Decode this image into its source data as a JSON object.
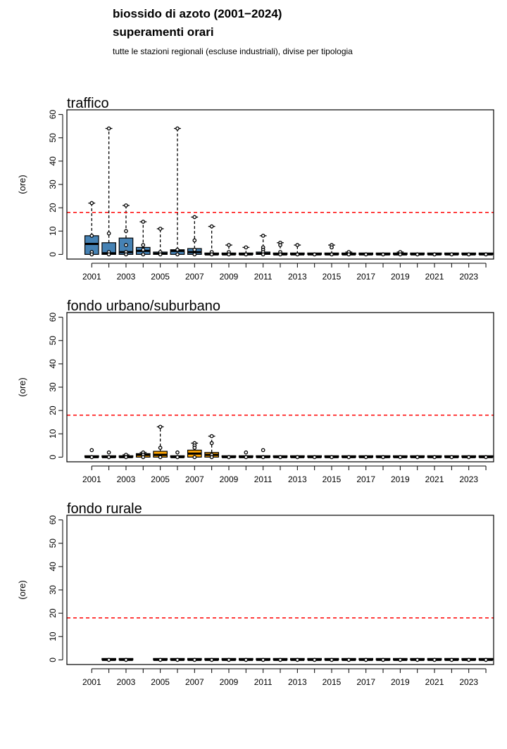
{
  "header": {
    "title_line1": "biossido di azoto (2001−2024)",
    "title_line2": "superamenti orari",
    "subtitle": "tutte le stazioni regionali (escluse industriali), divise per tipologia"
  },
  "colors": {
    "traffico": "#4682b4",
    "fondo_urbano": "#ffa500",
    "fondo_rurale": "#808080",
    "threshold": "#ff0000"
  },
  "chart_data": [
    {
      "type": "boxplot",
      "title": "traffico",
      "ylabel": "(ore)",
      "ylim": [
        -2,
        62
      ],
      "yticks": [
        0,
        10,
        20,
        30,
        40,
        50,
        60
      ],
      "years": [
        2001,
        2002,
        2003,
        2004,
        2005,
        2006,
        2007,
        2008,
        2009,
        2010,
        2011,
        2012,
        2013,
        2014,
        2015,
        2016,
        2017,
        2018,
        2019,
        2020,
        2021,
        2022,
        2023,
        2024
      ],
      "xtick_labels": [
        2001,
        2003,
        2005,
        2007,
        2009,
        2011,
        2013,
        2015,
        2017,
        2019,
        2021,
        2023
      ],
      "threshold": 18,
      "boxes": [
        {
          "year": 2001,
          "q1": 0,
          "median": 4.5,
          "q3": 8,
          "wmin": 0,
          "wmax": 22,
          "outliers": [
            22,
            8,
            1,
            0
          ]
        },
        {
          "year": 2002,
          "q1": 0,
          "median": 0.5,
          "q3": 5,
          "wmin": 0,
          "wmax": 54,
          "outliers": [
            54,
            9,
            1,
            0
          ]
        },
        {
          "year": 2003,
          "q1": 0,
          "median": 1,
          "q3": 7,
          "wmin": 0,
          "wmax": 21,
          "outliers": [
            21,
            10,
            4,
            1,
            0
          ]
        },
        {
          "year": 2004,
          "q1": 0,
          "median": 1.5,
          "q3": 3,
          "wmin": 0,
          "wmax": 14,
          "outliers": [
            14,
            4,
            2,
            0
          ]
        },
        {
          "year": 2005,
          "q1": 0,
          "median": 0.3,
          "q3": 1,
          "wmin": 0,
          "wmax": 11,
          "outliers": [
            11,
            1,
            0
          ]
        },
        {
          "year": 2006,
          "q1": 0,
          "median": 1.5,
          "q3": 2,
          "wmin": 0,
          "wmax": 54,
          "outliers": [
            54,
            2,
            0
          ]
        },
        {
          "year": 2007,
          "q1": 0,
          "median": 1,
          "q3": 2.5,
          "wmin": 0,
          "wmax": 16,
          "outliers": [
            16,
            6,
            2,
            0
          ]
        },
        {
          "year": 2008,
          "q1": 0,
          "median": 0,
          "q3": 0.5,
          "wmin": 0,
          "wmax": 12,
          "outliers": [
            12,
            1,
            0
          ]
        },
        {
          "year": 2009,
          "q1": 0,
          "median": 0,
          "q3": 0.3,
          "wmin": 0,
          "wmax": 4,
          "outliers": [
            4,
            1,
            0
          ]
        },
        {
          "year": 2010,
          "q1": 0,
          "median": 0,
          "q3": 0.3,
          "wmin": 0,
          "wmax": 3,
          "outliers": [
            3,
            0
          ]
        },
        {
          "year": 2011,
          "q1": 0,
          "median": 0.3,
          "q3": 1,
          "wmin": 0,
          "wmax": 8,
          "outliers": [
            8,
            3,
            2,
            1,
            0
          ]
        },
        {
          "year": 2012,
          "q1": 0,
          "median": 0,
          "q3": 0.5,
          "wmin": 0,
          "wmax": 5,
          "outliers": [
            5,
            4,
            1,
            0
          ]
        },
        {
          "year": 2013,
          "q1": 0,
          "median": 0,
          "q3": 0.2,
          "wmin": 0,
          "wmax": 4,
          "outliers": [
            4,
            0
          ]
        },
        {
          "year": 2014,
          "q1": 0,
          "median": 0,
          "q3": 0.2,
          "wmin": 0,
          "wmax": 0.2,
          "outliers": [
            0
          ]
        },
        {
          "year": 2015,
          "q1": 0,
          "median": 0,
          "q3": 0.2,
          "wmin": 0,
          "wmax": 4,
          "outliers": [
            4,
            3,
            0
          ]
        },
        {
          "year": 2016,
          "q1": 0,
          "median": 0,
          "q3": 0.2,
          "wmin": 0,
          "wmax": 1,
          "outliers": [
            1,
            0
          ]
        },
        {
          "year": 2017,
          "q1": 0,
          "median": 0,
          "q3": 0.2,
          "wmin": 0,
          "wmax": 0.2,
          "outliers": [
            0
          ]
        },
        {
          "year": 2018,
          "q1": 0,
          "median": 0,
          "q3": 0.2,
          "wmin": 0,
          "wmax": 0.2,
          "outliers": [
            0
          ]
        },
        {
          "year": 2019,
          "q1": 0,
          "median": 0,
          "q3": 0.2,
          "wmin": 0,
          "wmax": 1,
          "outliers": [
            1,
            0
          ]
        },
        {
          "year": 2020,
          "q1": 0,
          "median": 0,
          "q3": 0.2,
          "wmin": 0,
          "wmax": 0.2,
          "outliers": [
            0
          ]
        },
        {
          "year": 2021,
          "q1": 0,
          "median": 0,
          "q3": 0.2,
          "wmin": 0,
          "wmax": 0.2,
          "outliers": [
            0
          ]
        },
        {
          "year": 2022,
          "q1": 0,
          "median": 0,
          "q3": 0.2,
          "wmin": 0,
          "wmax": 0.2,
          "outliers": [
            0
          ]
        },
        {
          "year": 2023,
          "q1": 0,
          "median": 0,
          "q3": 0.2,
          "wmin": 0,
          "wmax": 0.2,
          "outliers": [
            0
          ]
        },
        {
          "year": 2024,
          "q1": 0,
          "median": 0,
          "q3": 0.2,
          "wmin": 0,
          "wmax": 0.2,
          "outliers": [
            0
          ]
        }
      ]
    },
    {
      "type": "boxplot",
      "title": "fondo urbano/suburbano",
      "ylabel": "(ore)",
      "ylim": [
        -2,
        62
      ],
      "yticks": [
        0,
        10,
        20,
        30,
        40,
        50,
        60
      ],
      "years": [
        2001,
        2002,
        2003,
        2004,
        2005,
        2006,
        2007,
        2008,
        2009,
        2010,
        2011,
        2012,
        2013,
        2014,
        2015,
        2016,
        2017,
        2018,
        2019,
        2020,
        2021,
        2022,
        2023,
        2024
      ],
      "xtick_labels": [
        2001,
        2003,
        2005,
        2007,
        2009,
        2011,
        2013,
        2015,
        2017,
        2019,
        2021,
        2023
      ],
      "threshold": 18,
      "boxes": [
        {
          "year": 2001,
          "q1": 0,
          "median": 0,
          "q3": 0.2,
          "wmin": 0,
          "wmax": 0.2,
          "outliers": [
            3,
            0
          ]
        },
        {
          "year": 2002,
          "q1": 0,
          "median": 0,
          "q3": 0.2,
          "wmin": 0,
          "wmax": 0.2,
          "outliers": [
            2,
            0
          ]
        },
        {
          "year": 2003,
          "q1": 0,
          "median": 0,
          "q3": 0.3,
          "wmin": 0,
          "wmax": 1,
          "outliers": [
            1,
            0
          ]
        },
        {
          "year": 2004,
          "q1": 0,
          "median": 1,
          "q3": 1.5,
          "wmin": 0,
          "wmax": 2,
          "outliers": [
            2,
            1,
            0
          ]
        },
        {
          "year": 2005,
          "q1": 0,
          "median": 1,
          "q3": 2.5,
          "wmin": 0,
          "wmax": 13,
          "outliers": [
            13,
            4,
            0
          ]
        },
        {
          "year": 2006,
          "q1": 0,
          "median": 0,
          "q3": 0.2,
          "wmin": 0,
          "wmax": 0.2,
          "outliers": [
            2,
            0
          ]
        },
        {
          "year": 2007,
          "q1": 0,
          "median": 1.5,
          "q3": 3,
          "wmin": 0,
          "wmax": 6,
          "outliers": [
            6,
            5,
            4,
            0
          ]
        },
        {
          "year": 2008,
          "q1": 0,
          "median": 1,
          "q3": 2,
          "wmin": 0,
          "wmax": 9,
          "outliers": [
            9,
            6,
            1,
            0
          ]
        },
        {
          "year": 2009,
          "q1": 0,
          "median": 0,
          "q3": 0.2,
          "wmin": 0,
          "wmax": 0.2,
          "outliers": [
            0
          ]
        },
        {
          "year": 2010,
          "q1": 0,
          "median": 0,
          "q3": 0.2,
          "wmin": 0,
          "wmax": 0.2,
          "outliers": [
            2,
            0
          ]
        },
        {
          "year": 2011,
          "q1": 0,
          "median": 0,
          "q3": 0.2,
          "wmin": 0,
          "wmax": 0.2,
          "outliers": [
            3,
            0
          ]
        },
        {
          "year": 2012,
          "q1": 0,
          "median": 0,
          "q3": 0.2,
          "wmin": 0,
          "wmax": 0.2,
          "outliers": [
            0
          ]
        },
        {
          "year": 2013,
          "q1": 0,
          "median": 0,
          "q3": 0.2,
          "wmin": 0,
          "wmax": 0.2,
          "outliers": [
            0
          ]
        },
        {
          "year": 2014,
          "q1": 0,
          "median": 0,
          "q3": 0.2,
          "wmin": 0,
          "wmax": 0.2,
          "outliers": [
            0
          ]
        },
        {
          "year": 2015,
          "q1": 0,
          "median": 0,
          "q3": 0.2,
          "wmin": 0,
          "wmax": 0.2,
          "outliers": [
            0
          ]
        },
        {
          "year": 2016,
          "q1": 0,
          "median": 0,
          "q3": 0.2,
          "wmin": 0,
          "wmax": 0.2,
          "outliers": [
            0
          ]
        },
        {
          "year": 2017,
          "q1": 0,
          "median": 0,
          "q3": 0.2,
          "wmin": 0,
          "wmax": 0.2,
          "outliers": [
            0
          ]
        },
        {
          "year": 2018,
          "q1": 0,
          "median": 0,
          "q3": 0.2,
          "wmin": 0,
          "wmax": 0.2,
          "outliers": [
            0
          ]
        },
        {
          "year": 2019,
          "q1": 0,
          "median": 0,
          "q3": 0.2,
          "wmin": 0,
          "wmax": 0.2,
          "outliers": [
            0
          ]
        },
        {
          "year": 2020,
          "q1": 0,
          "median": 0,
          "q3": 0.2,
          "wmin": 0,
          "wmax": 0.2,
          "outliers": [
            0
          ]
        },
        {
          "year": 2021,
          "q1": 0,
          "median": 0,
          "q3": 0.2,
          "wmin": 0,
          "wmax": 0.2,
          "outliers": [
            0
          ]
        },
        {
          "year": 2022,
          "q1": 0,
          "median": 0,
          "q3": 0.2,
          "wmin": 0,
          "wmax": 0.2,
          "outliers": [
            0
          ]
        },
        {
          "year": 2023,
          "q1": 0,
          "median": 0,
          "q3": 0.2,
          "wmin": 0,
          "wmax": 0.2,
          "outliers": [
            0
          ]
        },
        {
          "year": 2024,
          "q1": 0,
          "median": 0,
          "q3": 0.2,
          "wmin": 0,
          "wmax": 0.2,
          "outliers": [
            0
          ]
        }
      ]
    },
    {
      "type": "boxplot",
      "title": "fondo rurale",
      "ylabel": "(ore)",
      "ylim": [
        -2,
        62
      ],
      "yticks": [
        0,
        10,
        20,
        30,
        40,
        50,
        60
      ],
      "years": [
        2001,
        2002,
        2003,
        2004,
        2005,
        2006,
        2007,
        2008,
        2009,
        2010,
        2011,
        2012,
        2013,
        2014,
        2015,
        2016,
        2017,
        2018,
        2019,
        2020,
        2021,
        2022,
        2023,
        2024
      ],
      "xtick_labels": [
        2001,
        2003,
        2005,
        2007,
        2009,
        2011,
        2013,
        2015,
        2017,
        2019,
        2021,
        2023
      ],
      "threshold": 18,
      "boxes": [
        {
          "year": 2002,
          "q1": 0,
          "median": 0,
          "q3": 0,
          "wmin": 0,
          "wmax": 0,
          "outliers": [
            0
          ]
        },
        {
          "year": 2003,
          "q1": 0,
          "median": 0,
          "q3": 0,
          "wmin": 0,
          "wmax": 0,
          "outliers": [
            0
          ]
        },
        {
          "year": 2005,
          "q1": 0,
          "median": 0,
          "q3": 0,
          "wmin": 0,
          "wmax": 0,
          "outliers": [
            0
          ]
        },
        {
          "year": 2006,
          "q1": 0,
          "median": 0,
          "q3": 0,
          "wmin": 0,
          "wmax": 0,
          "outliers": [
            0
          ]
        },
        {
          "year": 2007,
          "q1": 0,
          "median": 0,
          "q3": 0,
          "wmin": 0,
          "wmax": 0,
          "outliers": [
            0
          ]
        },
        {
          "year": 2008,
          "q1": 0,
          "median": 0,
          "q3": 0,
          "wmin": 0,
          "wmax": 0,
          "outliers": [
            0
          ]
        },
        {
          "year": 2009,
          "q1": 0,
          "median": 0,
          "q3": 0.2,
          "wmin": 0,
          "wmax": 0.2,
          "outliers": [
            0
          ]
        },
        {
          "year": 2010,
          "q1": 0,
          "median": 0,
          "q3": 0.2,
          "wmin": 0,
          "wmax": 0.2,
          "outliers": [
            0
          ]
        },
        {
          "year": 2011,
          "q1": 0,
          "median": 0,
          "q3": 0.2,
          "wmin": 0,
          "wmax": 0.2,
          "outliers": [
            0
          ]
        },
        {
          "year": 2012,
          "q1": 0,
          "median": 0,
          "q3": 0.2,
          "wmin": 0,
          "wmax": 0.2,
          "outliers": [
            0
          ]
        },
        {
          "year": 2013,
          "q1": 0,
          "median": 0,
          "q3": 0.2,
          "wmin": 0,
          "wmax": 0.2,
          "outliers": [
            0
          ]
        },
        {
          "year": 2014,
          "q1": 0,
          "median": 0,
          "q3": 0.2,
          "wmin": 0,
          "wmax": 0.2,
          "outliers": [
            0
          ]
        },
        {
          "year": 2015,
          "q1": 0,
          "median": 0,
          "q3": 0.2,
          "wmin": 0,
          "wmax": 0.2,
          "outliers": [
            0
          ]
        },
        {
          "year": 2016,
          "q1": 0,
          "median": 0,
          "q3": 0.2,
          "wmin": 0,
          "wmax": 0.2,
          "outliers": [
            0
          ]
        },
        {
          "year": 2017,
          "q1": 0,
          "median": 0,
          "q3": 0.2,
          "wmin": 0,
          "wmax": 0.2,
          "outliers": [
            0
          ]
        },
        {
          "year": 2018,
          "q1": 0,
          "median": 0,
          "q3": 0.2,
          "wmin": 0,
          "wmax": 0.2,
          "outliers": [
            0
          ]
        },
        {
          "year": 2019,
          "q1": 0,
          "median": 0,
          "q3": 0.2,
          "wmin": 0,
          "wmax": 0.2,
          "outliers": [
            0
          ]
        },
        {
          "year": 2020,
          "q1": 0,
          "median": 0,
          "q3": 0.2,
          "wmin": 0,
          "wmax": 0.2,
          "outliers": [
            0
          ]
        },
        {
          "year": 2021,
          "q1": 0,
          "median": 0,
          "q3": 0.2,
          "wmin": 0,
          "wmax": 0.2,
          "outliers": [
            0
          ]
        },
        {
          "year": 2022,
          "q1": 0,
          "median": 0,
          "q3": 0.2,
          "wmin": 0,
          "wmax": 0.2,
          "outliers": [
            0
          ]
        },
        {
          "year": 2023,
          "q1": 0,
          "median": 0,
          "q3": 0.2,
          "wmin": 0,
          "wmax": 0.2,
          "outliers": [
            0
          ]
        },
        {
          "year": 2024,
          "q1": 0,
          "median": 0,
          "q3": 0.2,
          "wmin": 0,
          "wmax": 0.2,
          "outliers": [
            0
          ]
        }
      ]
    }
  ]
}
